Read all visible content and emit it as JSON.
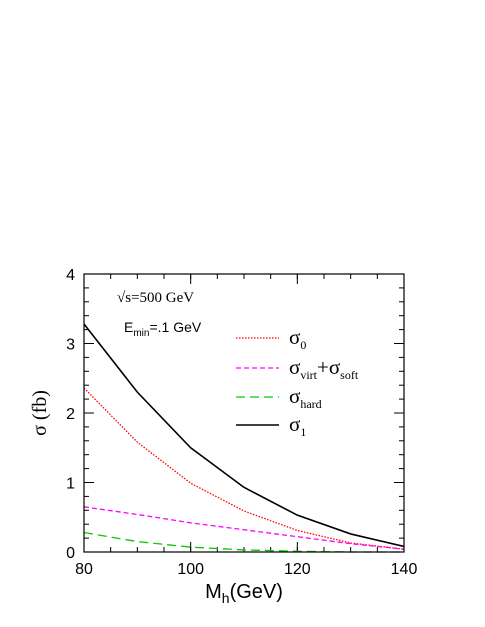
{
  "chart_data": {
    "type": "line",
    "xlabel": {
      "main": "M",
      "sub": "h",
      "tail": "(GeV)"
    },
    "ylabel": "σ (fb)",
    "xlim": [
      80,
      140
    ],
    "ylim": [
      0,
      4
    ],
    "x_ticks": [
      80,
      100,
      120,
      140
    ],
    "x_tick_labels": [
      "80",
      "100",
      "120",
      "140"
    ],
    "y_ticks": [
      0,
      1,
      2,
      3,
      4
    ],
    "y_tick_labels": [
      "0",
      "1",
      "2",
      "3",
      "4"
    ],
    "x_minor_step": 5,
    "y_minor_step": 0.2,
    "grid": false,
    "legend_position": "right",
    "annotations": [
      {
        "text": "√s=500 GeV"
      },
      {
        "main": "E",
        "sub": "min",
        "tail": "=.1 GeV"
      }
    ],
    "x": [
      80,
      90,
      100,
      110,
      120,
      130,
      140
    ],
    "series": [
      {
        "legend": [
          {
            "t": "σ",
            "sub": "0"
          }
        ],
        "color": "#ff0000",
        "dash": "1.5 1.5",
        "values": [
          2.36,
          1.58,
          0.99,
          0.59,
          0.31,
          0.13,
          0.04
        ]
      },
      {
        "legend": [
          {
            "t": "σ",
            "sub": "virt"
          },
          {
            "t": "+σ",
            "sub": "soft"
          }
        ],
        "color": "#ff00ff",
        "dash": "5 3",
        "values": [
          0.65,
          0.54,
          0.42,
          0.32,
          0.22,
          0.12,
          0.04
        ]
      },
      {
        "legend": [
          {
            "t": "σ",
            "sub": "hard"
          }
        ],
        "color": "#00cc00",
        "dash": "9 5",
        "values": [
          0.28,
          0.15,
          0.07,
          0.03,
          0.01,
          0.0,
          0.0
        ]
      },
      {
        "legend": [
          {
            "t": "σ",
            "sub": "1"
          }
        ],
        "color": "#000000",
        "dash": "",
        "values": [
          3.28,
          2.3,
          1.5,
          0.93,
          0.53,
          0.26,
          0.08
        ]
      }
    ]
  }
}
